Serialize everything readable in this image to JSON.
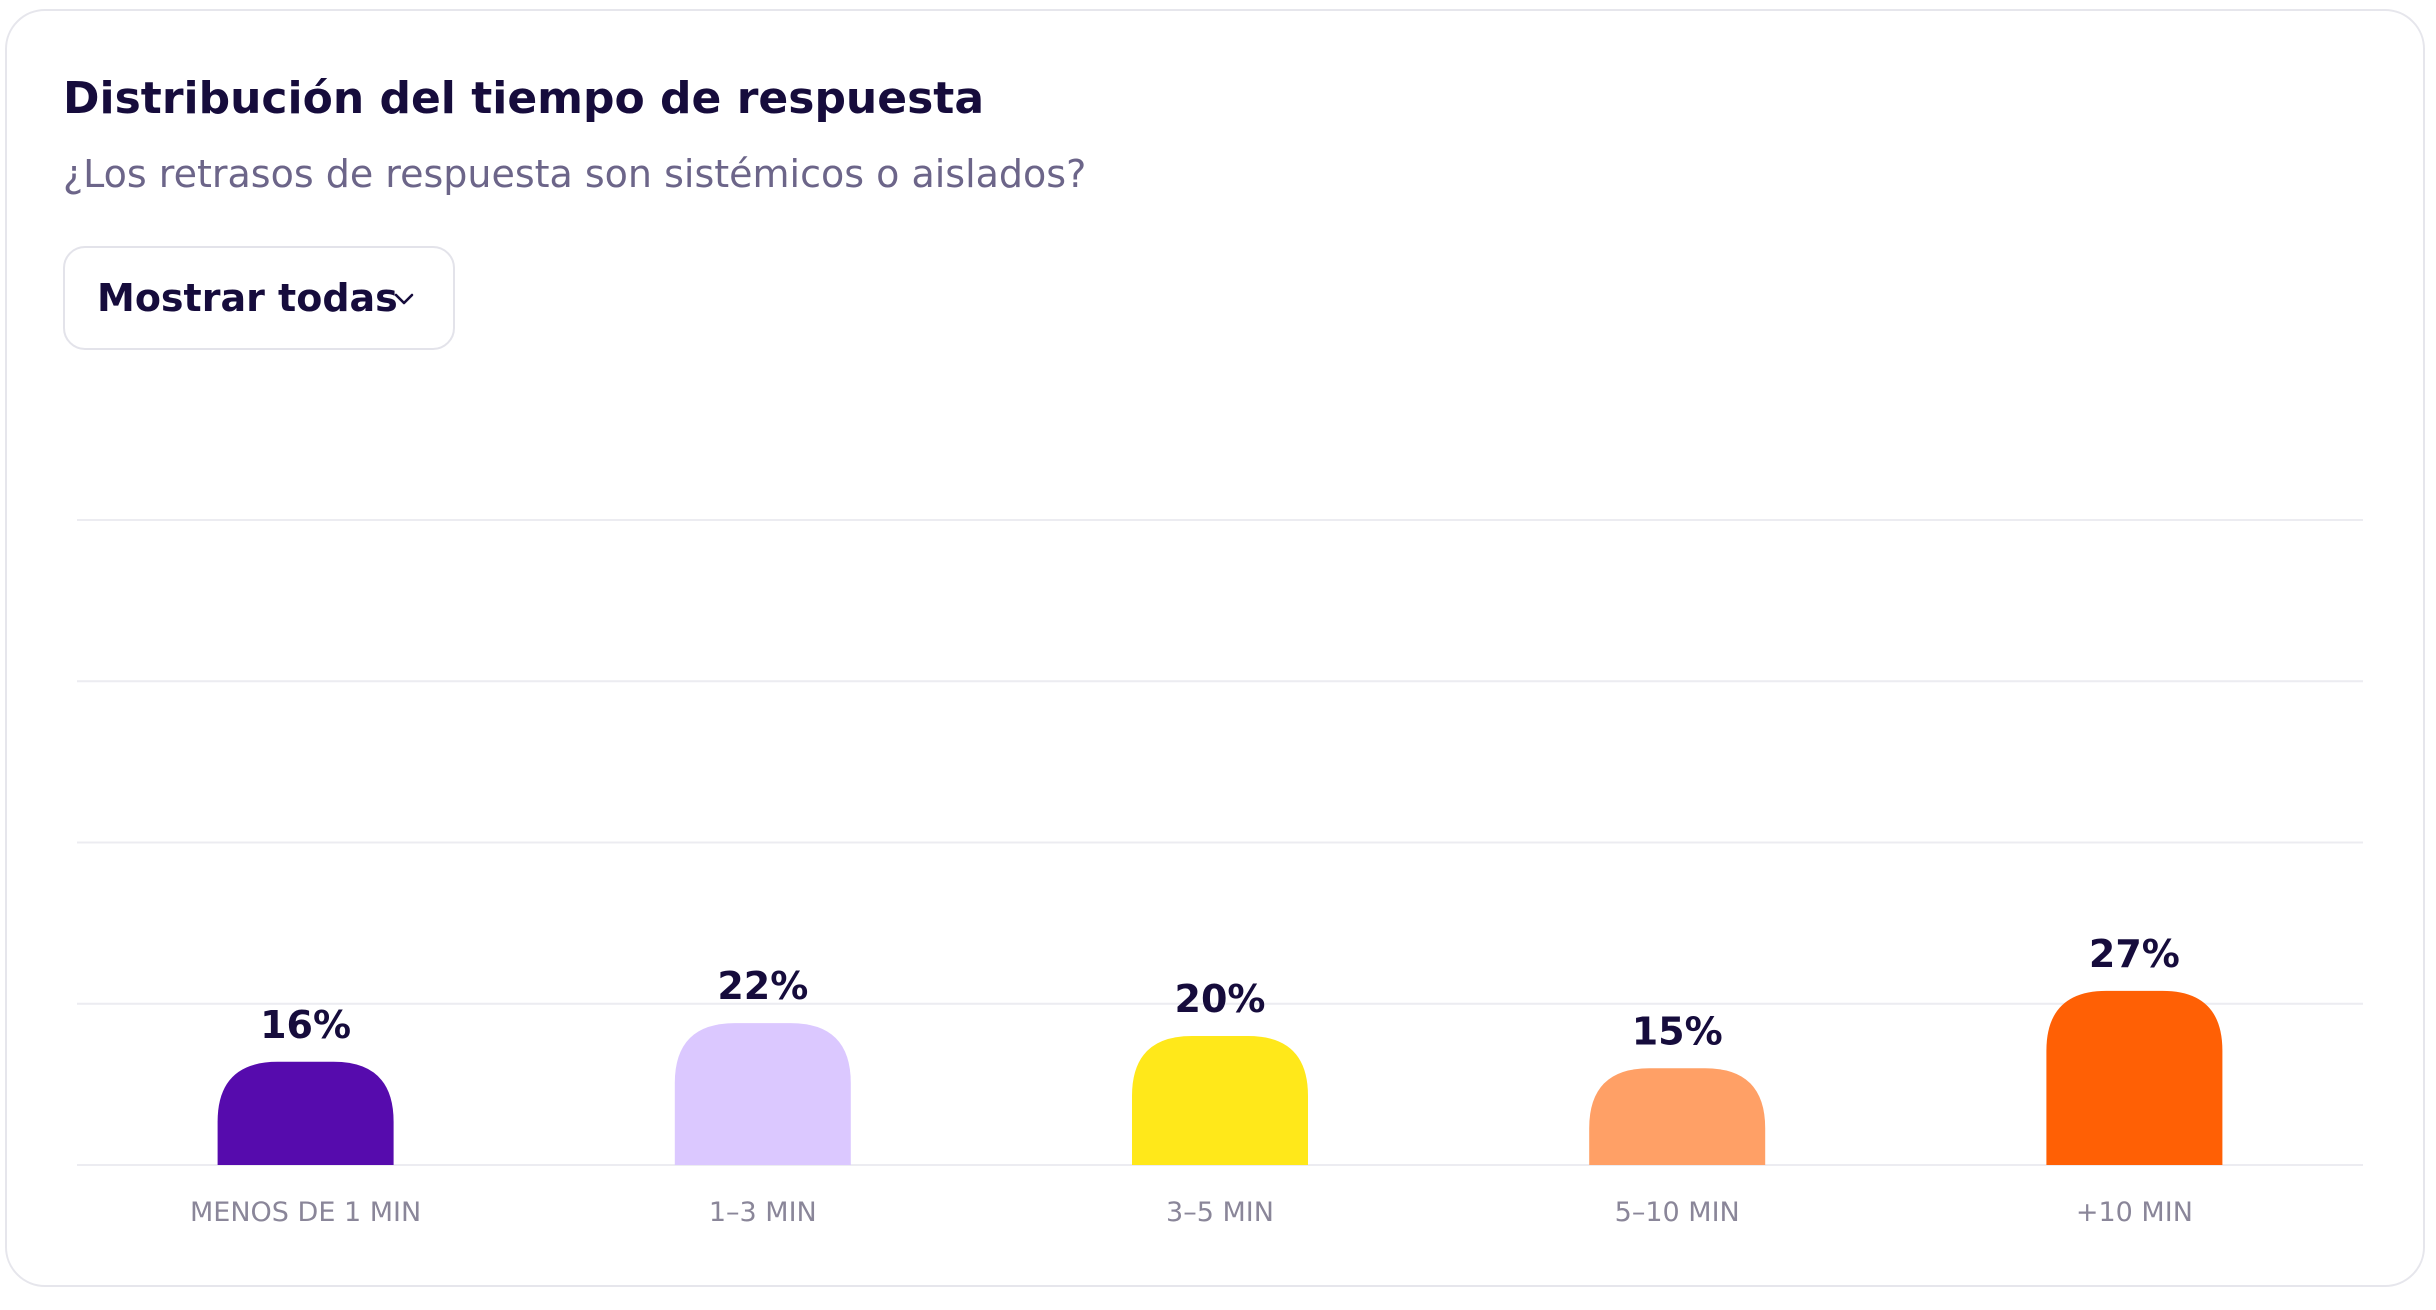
{
  "card": {
    "title": "Distribución del tiempo de respuesta",
    "subtitle": "¿Los retrasos de respuesta son sistémicos o aislados?"
  },
  "filter": {
    "label": "Mostrar todas",
    "icon": "chevron-down-icon"
  },
  "colors": {
    "text_dark": "#160c3c",
    "text_muted": "#6c6589",
    "axis_label": "#8a8699",
    "gridline": "#ececf1"
  },
  "chart_data": {
    "type": "bar",
    "categories": [
      "MENOS DE 1 MIN",
      "1–3 MIN",
      "3–5 MIN",
      "5–10 MIN",
      "+10 MIN"
    ],
    "values": [
      16,
      22,
      20,
      15,
      27
    ],
    "value_labels": [
      "16%",
      "22%",
      "20%",
      "15%",
      "27%"
    ],
    "colors": [
      "#560bad",
      "#dbc8ff",
      "#ffe81a",
      "#ffa066",
      "#ff6005"
    ],
    "ylim": [
      0,
      100
    ],
    "gridlines": [
      0,
      25,
      50,
      75,
      100
    ],
    "grid": true,
    "legend": "none"
  }
}
